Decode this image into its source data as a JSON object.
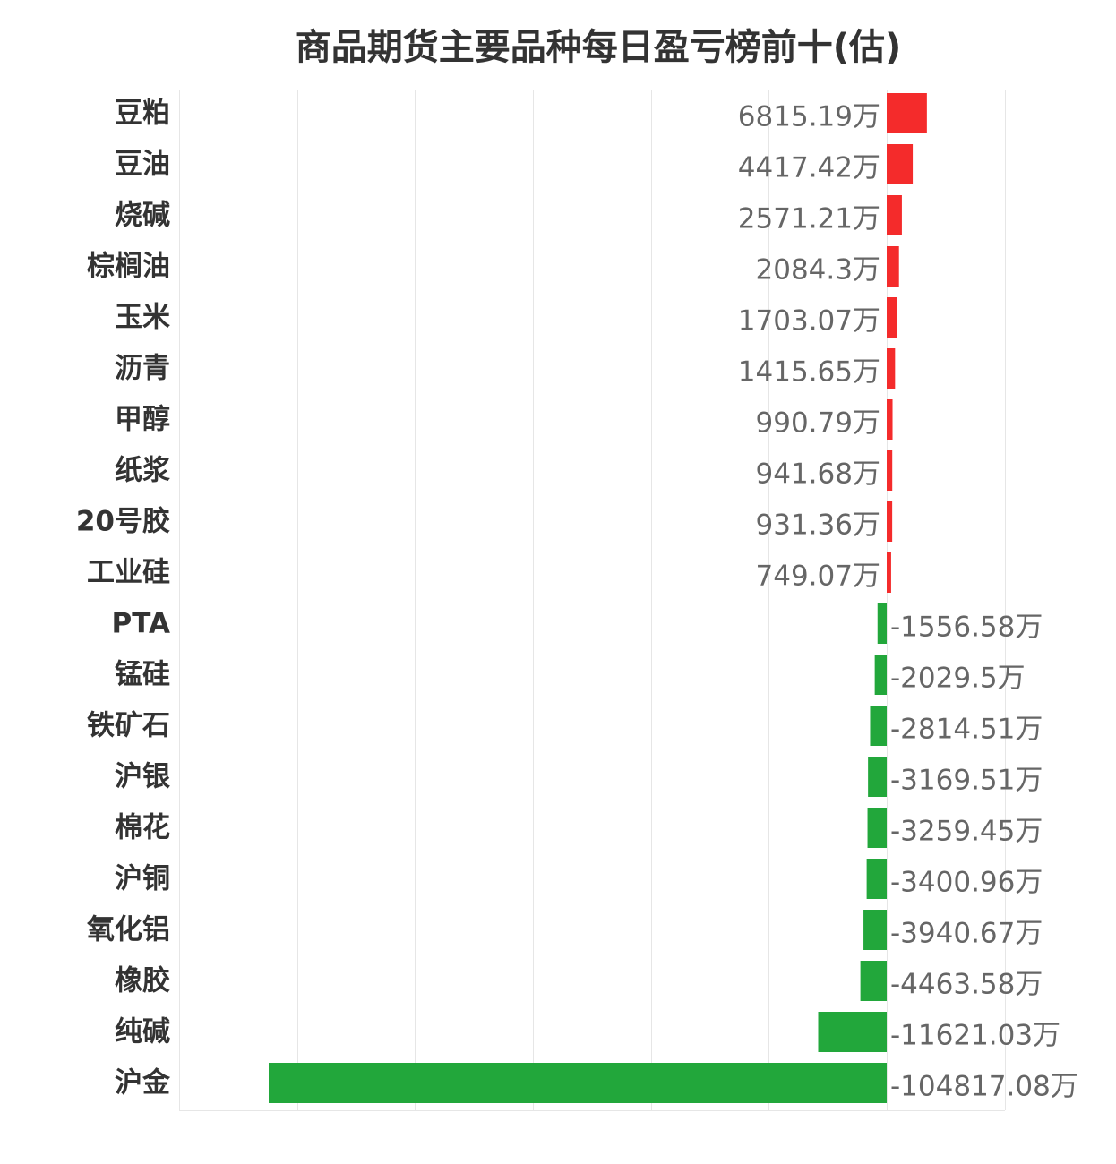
{
  "chart_data": {
    "type": "bar",
    "orientation": "horizontal",
    "title": "商品期货主要品种每日盈亏榜前十(估)",
    "value_suffix": "万",
    "categories": [
      "豆粕",
      "豆油",
      "烧碱",
      "棕榈油",
      "玉米",
      "沥青",
      "甲醇",
      "纸浆",
      "20号胶",
      "工业硅",
      "PTA",
      "锰硅",
      "铁矿石",
      "沪银",
      "棉花",
      "沪铜",
      "氧化铝",
      "橡胶",
      "纯碱",
      "沪金"
    ],
    "values": [
      6815.19,
      4417.42,
      2571.21,
      2084.3,
      1703.07,
      1415.65,
      990.79,
      941.68,
      931.36,
      749.07,
      -1556.58,
      -2029.5,
      -2814.51,
      -3169.51,
      -3259.45,
      -3400.96,
      -3940.67,
      -4463.58,
      -11621.03,
      -104817.08
    ],
    "value_labels": [
      "6815.19万",
      "4417.42万",
      "2571.21万",
      "2084.3万",
      "1703.07万",
      "1415.65万",
      "990.79万",
      "941.68万",
      "931.36万",
      "749.07万",
      "-1556.58万",
      "-2029.5万",
      "-2814.51万",
      "-3169.51万",
      "-3259.45万",
      "-3400.96万",
      "-3940.67万",
      "-4463.58万",
      "-11621.03万",
      "-104817.08万"
    ],
    "colors": {
      "positive": "#f42b2b",
      "negative": "#22a73b"
    },
    "xlim": [
      -120000,
      20000
    ],
    "grid": true,
    "legend": false
  }
}
